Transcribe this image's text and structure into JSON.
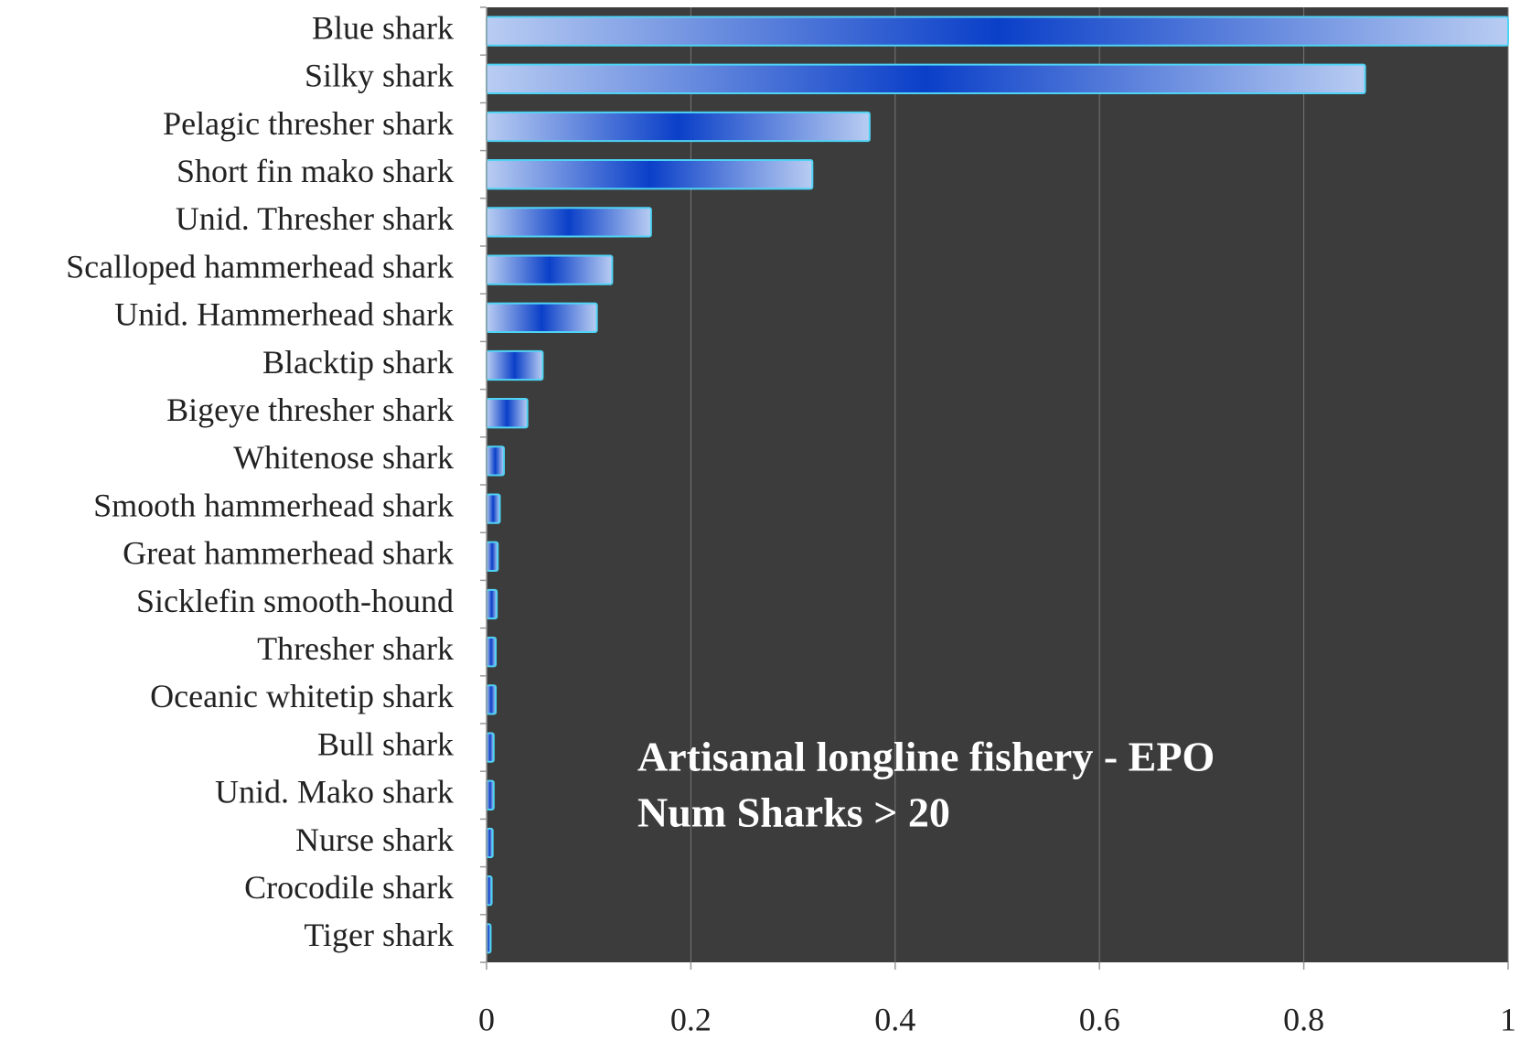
{
  "chart_data": {
    "type": "bar",
    "orientation": "horizontal",
    "categories": [
      "Blue shark",
      "Silky shark",
      "Pelagic thresher shark",
      "Short fin mako shark",
      "Unid. Thresher shark",
      "Scalloped hammerhead shark",
      "Unid. Hammerhead shark",
      "Blacktip shark",
      "Bigeye thresher shark",
      "Whitenose shark",
      "Smooth hammerhead shark",
      "Great hammerhead shark",
      "Sicklefin smooth-hound",
      "Thresher shark",
      "Oceanic whitetip shark",
      "Bull shark",
      "Unid. Mako shark",
      "Nurse shark",
      "Crocodile shark",
      "Tiger shark"
    ],
    "values": [
      1.0,
      0.86,
      0.375,
      0.319,
      0.161,
      0.123,
      0.108,
      0.055,
      0.04,
      0.017,
      0.013,
      0.011,
      0.01,
      0.009,
      0.009,
      0.007,
      0.007,
      0.006,
      0.005,
      0.004
    ],
    "color": "#0a3fc8",
    "xlim": [
      0,
      1
    ],
    "xticks": [
      0,
      0.2,
      0.4,
      0.6,
      0.8,
      1
    ],
    "grid": true,
    "annotations": [
      "Artisanal longline fishery - EPO",
      "Num Sharks > 20"
    ]
  }
}
